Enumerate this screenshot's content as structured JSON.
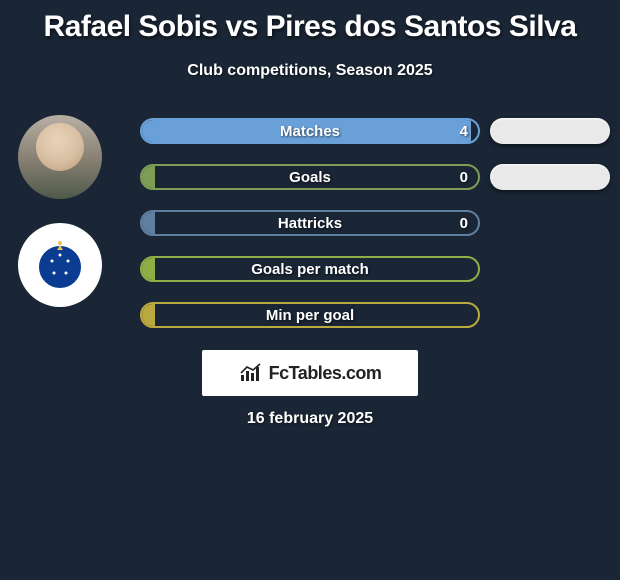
{
  "title": "Rafael Sobis vs Pires dos Santos Silva",
  "subtitle": "Club competitions, Season 2025",
  "date": "16 february 2025",
  "brand": "FcTables.com",
  "bar_max": 5,
  "colors": {
    "bar_matches": "#6aa0d8",
    "bar_goals": "#7e9e55",
    "bar_hattricks": "#607fa0",
    "bar_gpm": "#8fae46",
    "bar_mpg": "#b9a93f",
    "background": "#1a2635",
    "pill": "#e9e9e9",
    "club_blue": "#0a3d91"
  },
  "avatars": [
    {
      "name": "player-avatar",
      "kind": "player"
    },
    {
      "name": "club-badge",
      "kind": "club"
    }
  ],
  "stats": [
    {
      "label": "Matches",
      "value": "4",
      "fill_pct": 98,
      "color_key": "bar_matches",
      "show_pill": true
    },
    {
      "label": "Goals",
      "value": "0",
      "fill_pct": 4,
      "color_key": "bar_goals",
      "show_pill": true
    },
    {
      "label": "Hattricks",
      "value": "0",
      "fill_pct": 4,
      "color_key": "bar_hattricks",
      "show_pill": false
    },
    {
      "label": "Goals per match",
      "value": "",
      "fill_pct": 4,
      "color_key": "bar_gpm",
      "show_pill": false
    },
    {
      "label": "Min per goal",
      "value": "",
      "fill_pct": 4,
      "color_key": "bar_mpg",
      "show_pill": false
    }
  ]
}
